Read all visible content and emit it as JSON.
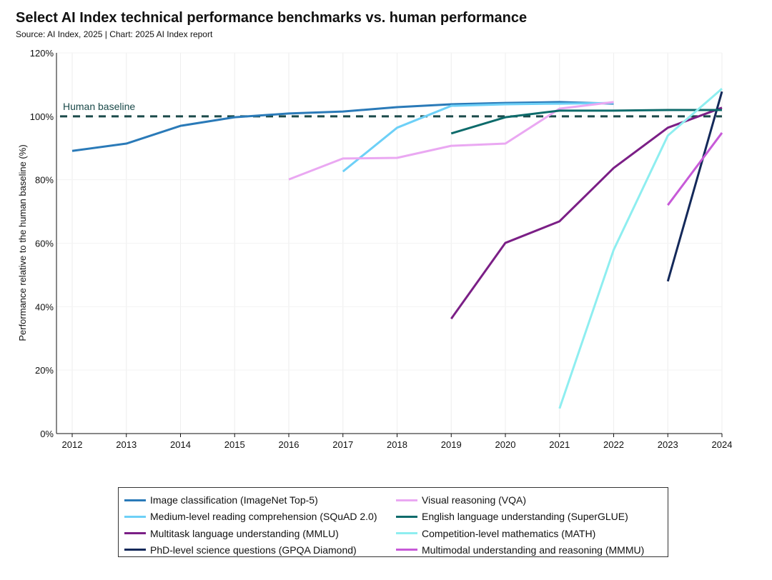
{
  "title": "Select AI Index technical performance benchmarks vs. human performance",
  "subtitle": "Source: AI Index, 2025 | Chart: 2025 AI Index report",
  "chart_data": {
    "type": "line",
    "title": "Select AI Index technical performance benchmarks vs. human performance",
    "ylabel": "Performance relative to the human baseline (%)",
    "xlabel": "",
    "xlim": [
      2012,
      2024
    ],
    "ylim": [
      0,
      120
    ],
    "x_ticks": [
      "2012",
      "2013",
      "2014",
      "2015",
      "2016",
      "2017",
      "2018",
      "2019",
      "2020",
      "2021",
      "2022",
      "2023",
      "2024"
    ],
    "y_ticks": [
      "0%",
      "20%",
      "40%",
      "60%",
      "80%",
      "100%",
      "120%"
    ],
    "grid": "vertical",
    "legend_position": "bottom",
    "baseline": {
      "label": "Human baseline",
      "value": 100,
      "color": "#1b4a4a"
    },
    "series": [
      {
        "name": "Image classification (ImageNet Top-5)",
        "color": "#2a7ab8",
        "x": [
          2012,
          2013,
          2014,
          2015,
          2016,
          2017,
          2018,
          2019,
          2020,
          2021,
          2022
        ],
        "y": [
          89.1,
          91.4,
          97.0,
          99.7,
          100.9,
          101.5,
          102.9,
          103.8,
          104.2,
          104.5,
          104.0
        ]
      },
      {
        "name": "Medium-level reading comprehension (SQuAD 2.0)",
        "color": "#6dd0f7",
        "x": [
          2017,
          2018,
          2019,
          2020,
          2021,
          2022
        ],
        "y": [
          82.6,
          96.4,
          103.3,
          103.8,
          104.0,
          104.2
        ]
      },
      {
        "name": "Multitask language understanding (MMLU)",
        "color": "#7b1f86",
        "x": [
          2019,
          2020,
          2021,
          2022,
          2023,
          2024
        ],
        "y": [
          36.2,
          60.1,
          66.9,
          83.7,
          96.4,
          102.7
        ]
      },
      {
        "name": "PhD-level science questions (GPQA Diamond)",
        "color": "#14295a",
        "x": [
          2023,
          2024
        ],
        "y": [
          48.0,
          107.8
        ]
      },
      {
        "name": "Visual reasoning (VQA)",
        "color": "#eaa8f2",
        "x": [
          2016,
          2017,
          2018,
          2019,
          2020,
          2021,
          2022
        ],
        "y": [
          80.1,
          86.7,
          86.9,
          90.7,
          91.4,
          102.4,
          104.5
        ]
      },
      {
        "name": "English language understanding (SuperGLUE)",
        "color": "#0d6b6b",
        "x": [
          2019,
          2020,
          2021,
          2022,
          2023,
          2024
        ],
        "y": [
          94.6,
          99.7,
          101.8,
          101.8,
          102.0,
          102.0
        ]
      },
      {
        "name": "Competition-level mathematics (MATH)",
        "color": "#8eeef0",
        "x": [
          2021,
          2022,
          2023,
          2024
        ],
        "y": [
          7.9,
          57.9,
          93.9,
          108.7
        ]
      },
      {
        "name": "Multimodal understanding and reasoning (MMMU)",
        "color": "#c75ad8",
        "x": [
          2023,
          2024
        ],
        "y": [
          72.0,
          94.8
        ]
      }
    ]
  }
}
